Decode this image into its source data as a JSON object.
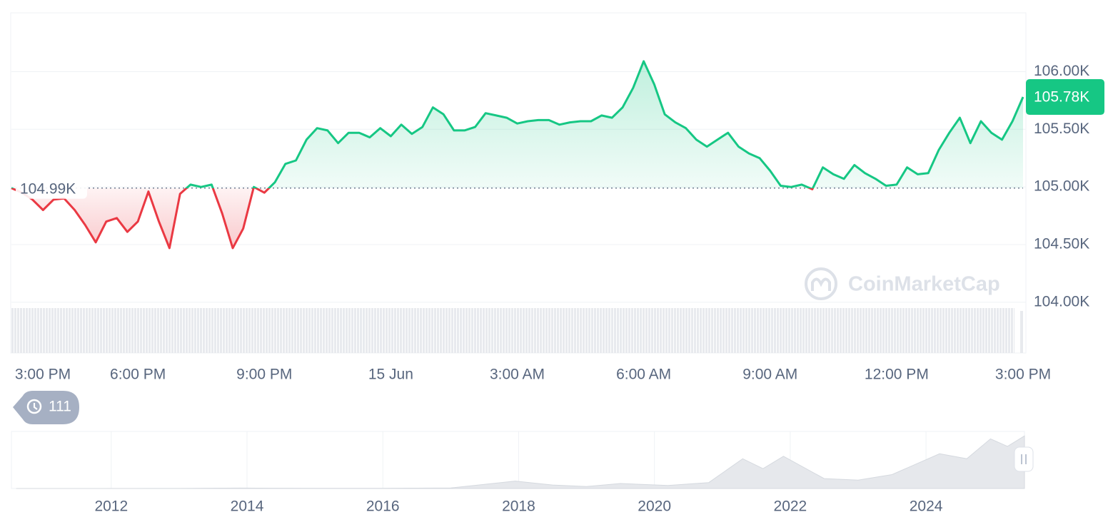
{
  "chart_data": {
    "type": "line",
    "x": [
      0,
      0.25,
      0.5,
      0.75,
      1,
      1.25,
      1.5,
      1.75,
      2,
      2.25,
      2.5,
      2.75,
      3,
      3.25,
      3.5,
      3.75,
      4,
      4.25,
      4.5,
      4.75,
      5,
      5.25,
      5.5,
      5.75,
      6,
      6.25,
      6.5,
      6.75,
      7,
      7.25,
      7.5,
      7.75,
      8,
      8.25,
      8.5,
      8.75,
      9,
      9.25,
      9.5,
      9.75,
      10,
      10.25,
      10.5,
      10.75,
      11,
      11.25,
      11.5,
      11.75,
      12,
      12.25,
      12.5,
      12.75,
      13,
      13.25,
      13.5,
      13.75,
      14,
      14.25,
      14.5,
      14.75,
      15,
      15.25,
      15.5,
      15.75,
      16,
      16.25,
      16.5,
      16.75,
      17,
      17.25,
      17.5,
      17.75,
      18,
      18.25,
      18.5,
      18.75,
      19,
      19.25,
      19.5,
      19.75,
      20,
      20.25,
      20.5,
      20.75,
      21,
      21.25,
      21.5,
      21.75,
      22,
      22.25,
      22.5,
      22.75,
      23,
      23.25,
      23.5,
      23.75,
      24
    ],
    "values": [
      104.99,
      104.95,
      104.89,
      104.8,
      104.89,
      104.9,
      104.8,
      104.67,
      104.52,
      104.7,
      104.73,
      104.61,
      104.7,
      104.96,
      104.7,
      104.47,
      104.94,
      105.02,
      105.0,
      105.02,
      104.77,
      104.47,
      104.64,
      105.0,
      104.95,
      105.04,
      105.2,
      105.23,
      105.41,
      105.51,
      105.49,
      105.38,
      105.47,
      105.47,
      105.43,
      105.51,
      105.44,
      105.54,
      105.46,
      105.52,
      105.69,
      105.63,
      105.49,
      105.49,
      105.52,
      105.64,
      105.62,
      105.6,
      105.55,
      105.57,
      105.58,
      105.58,
      105.54,
      105.56,
      105.57,
      105.57,
      105.62,
      105.6,
      105.69,
      105.86,
      106.09,
      105.89,
      105.63,
      105.56,
      105.51,
      105.41,
      105.35,
      105.41,
      105.47,
      105.35,
      105.29,
      105.25,
      105.14,
      105.01,
      105.0,
      105.02,
      104.98,
      105.17,
      105.11,
      105.07,
      105.19,
      105.12,
      105.07,
      105.01,
      105.02,
      105.17,
      105.11,
      105.12,
      105.32,
      105.47,
      105.6,
      105.38,
      105.57,
      105.47,
      105.41,
      105.57,
      105.78
    ],
    "up_color": "#16c784",
    "down_color": "#ea3943",
    "baseline": {
      "value": 104.99,
      "label": "104.99K"
    },
    "current_price": {
      "value": 105.78,
      "label": "105.78K"
    },
    "xlim": [
      0,
      24
    ],
    "xticks": [
      {
        "value": 0,
        "label": "3:00 PM"
      },
      {
        "value": 3,
        "label": "6:00 PM"
      },
      {
        "value": 6,
        "label": "9:00 PM"
      },
      {
        "value": 9,
        "label": "15 Jun"
      },
      {
        "value": 12,
        "label": "3:00 AM"
      },
      {
        "value": 15,
        "label": "6:00 AM"
      },
      {
        "value": 18,
        "label": "9:00 AM"
      },
      {
        "value": 21,
        "label": "12:00 PM"
      },
      {
        "value": 24,
        "label": "3:00 PM"
      }
    ],
    "ylim": [
      103.56,
      106.51
    ],
    "yticks": [
      {
        "value": 104,
        "label": "104.00K"
      },
      {
        "value": 104.5,
        "label": "104.50K"
      },
      {
        "value": 105,
        "label": "105.00K"
      },
      {
        "value": 105.5,
        "label": "105.50K"
      },
      {
        "value": 106,
        "label": "106.00K"
      }
    ],
    "grid": true,
    "watermark": "CoinMarketCap",
    "history_count": "111",
    "navigator": {
      "type": "area",
      "x": [
        2010.6,
        2013,
        2013.9,
        2015,
        2016,
        2017,
        2017.95,
        2018.5,
        2019,
        2019.5,
        2020.2,
        2020.8,
        2021.3,
        2021.6,
        2021.9,
        2022.5,
        2023,
        2023.5,
        2024.2,
        2024.6,
        2024.95,
        2025.2,
        2025.45
      ],
      "values": [
        0,
        0.1,
        0.8,
        0.3,
        0.4,
        1,
        15,
        7,
        4,
        10,
        6,
        12,
        60,
        40,
        65,
        20,
        17,
        28,
        70,
        60,
        100,
        85,
        106
      ],
      "xlim": [
        2010.53,
        2025.45
      ],
      "ylim": [
        0,
        115
      ],
      "xticks": [
        2012,
        2014,
        2016,
        2018,
        2020,
        2022,
        2024
      ]
    }
  }
}
